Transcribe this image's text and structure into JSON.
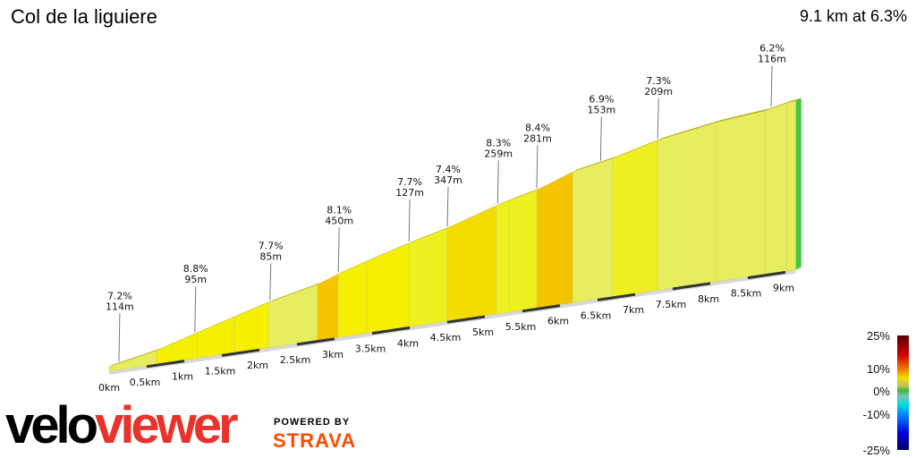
{
  "header": {
    "title": "Col de la liguiere",
    "summary": "9.1 km at 6.3%"
  },
  "chart_data": {
    "type": "area",
    "title": "Col de la liguiere",
    "xlabel": "",
    "ylabel": "",
    "distance_km": [
      0,
      0.63,
      1.17,
      1.67,
      2.12,
      2.77,
      3.05,
      3.43,
      3.99,
      4.5,
      5.15,
      5.33,
      5.69,
      6.17,
      6.7,
      7.3,
      8.07,
      8.73,
      9.02,
      9.14
    ],
    "elevation_gain_m": [
      0,
      32,
      73,
      110,
      143,
      180,
      206,
      236,
      277,
      310,
      363,
      375,
      397,
      442,
      468,
      508,
      540,
      556,
      572,
      575
    ],
    "x_ticks": [
      "0km",
      "0.5km",
      "1km",
      "1.5km",
      "2km",
      "2.5km",
      "3km",
      "3.5km",
      "4km",
      "4.5km",
      "5km",
      "5.5km",
      "6km",
      "6.5km",
      "7km",
      "7.5km",
      "8km",
      "8.5km",
      "9km"
    ],
    "annotations": [
      {
        "km": 0.13,
        "grade": "7.2%",
        "length": "114m"
      },
      {
        "km": 1.14,
        "grade": "8.8%",
        "length": "95m"
      },
      {
        "km": 2.14,
        "grade": "7.7%",
        "length": "85m"
      },
      {
        "km": 3.05,
        "grade": "8.1%",
        "length": "450m"
      },
      {
        "km": 3.99,
        "grade": "7.7%",
        "length": "127m"
      },
      {
        "km": 4.5,
        "grade": "7.4%",
        "length": "347m"
      },
      {
        "km": 5.17,
        "grade": "8.3%",
        "length": "259m"
      },
      {
        "km": 5.69,
        "grade": "8.4%",
        "length": "281m"
      },
      {
        "km": 6.54,
        "grade": "6.9%",
        "length": "153m"
      },
      {
        "km": 7.3,
        "grade": "7.3%",
        "length": "209m"
      },
      {
        "km": 8.81,
        "grade": "6.2%",
        "length": "116m"
      }
    ],
    "legend": {
      "placement": "bottom-right",
      "labels": [
        "25%",
        "10%",
        "0%",
        "-10%",
        "-25%"
      ],
      "colors": [
        "#5a0000",
        "#d00000",
        "#f08000",
        "#f0e000",
        "#c8c060",
        "#30c030",
        "#80c0c0",
        "#00e0e0",
        "#0080ff",
        "#0000e0",
        "#000060"
      ]
    }
  },
  "branding": {
    "logo_a": "velo",
    "logo_b": "viewer",
    "powered_by": "POWERED BY",
    "strava": "STRAVA"
  }
}
